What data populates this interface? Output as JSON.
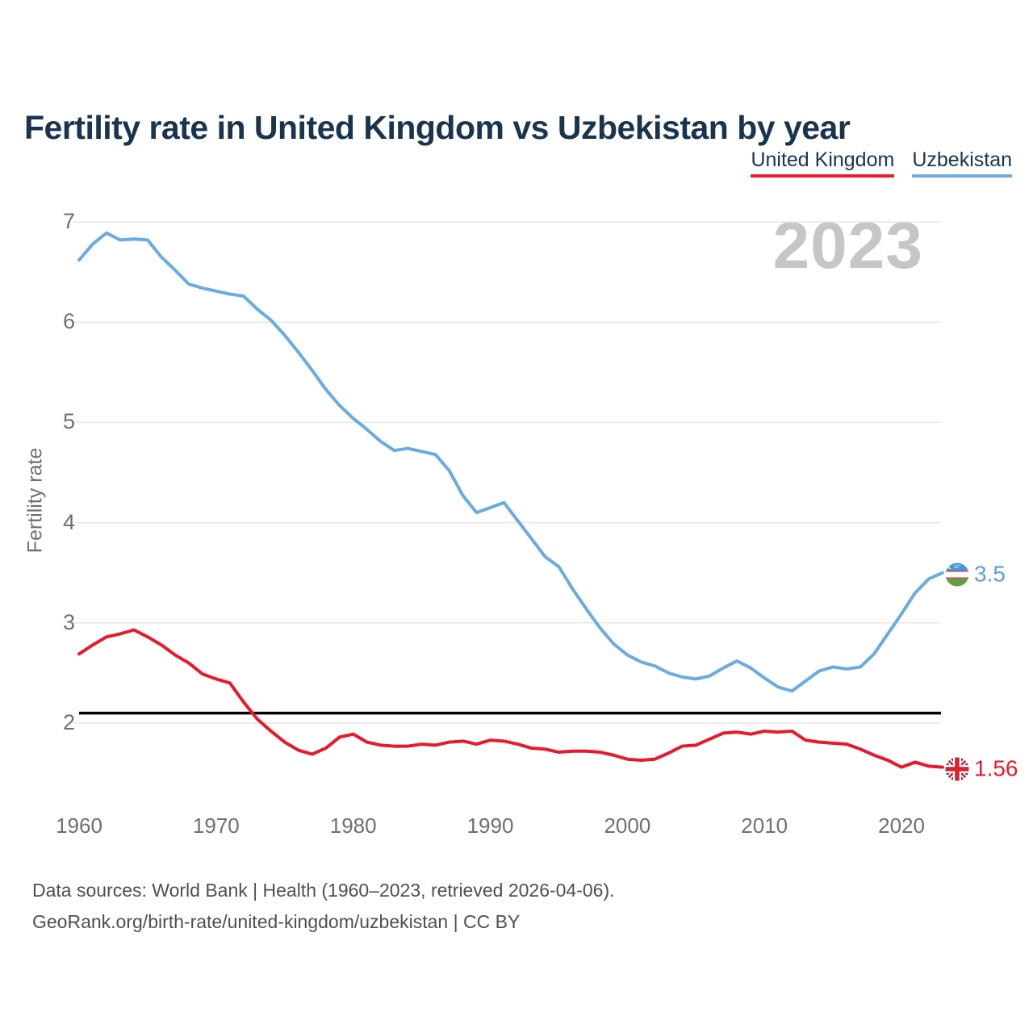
{
  "title": "Fertility rate in United Kingdom vs Uzbekistan by year",
  "legend": [
    {
      "label": "United Kingdom",
      "color": "#e8192c"
    },
    {
      "label": "Uzbekistan",
      "color": "#6aabe2"
    }
  ],
  "watermark": "2023",
  "y_axis": {
    "title": "Fertility rate",
    "ticks": [
      7,
      6,
      5,
      4,
      3,
      2
    ]
  },
  "x_axis": {
    "ticks": [
      1960,
      1970,
      1980,
      1990,
      2000,
      2010,
      2020
    ]
  },
  "end_labels": [
    {
      "series": "Uzbekistan",
      "value": "3.5",
      "color": "#5b9fd9"
    },
    {
      "series": "United Kingdom",
      "value": "1.56",
      "color": "#e8192c"
    }
  ],
  "footer": {
    "line1": "Data sources: World Bank | Health (1960–2023, retrieved 2026-04-06).",
    "line2": "GeoRank.org/birth-rate/united-kingdom/uzbekistan | CC BY"
  },
  "chart_data": {
    "type": "line",
    "title": "Fertility rate in United Kingdom vs Uzbekistan by year",
    "xlabel": "",
    "ylabel": "Fertility rate",
    "xlim": [
      1960,
      2023
    ],
    "ylim": [
      1.4,
      7.2
    ],
    "grid": "horizontal",
    "legend_position": "top-right",
    "reference_line": {
      "value": 2.1,
      "color": "#000000"
    },
    "x": [
      1960,
      1961,
      1962,
      1963,
      1964,
      1965,
      1966,
      1967,
      1968,
      1969,
      1970,
      1971,
      1972,
      1973,
      1974,
      1975,
      1976,
      1977,
      1978,
      1979,
      1980,
      1981,
      1982,
      1983,
      1984,
      1985,
      1986,
      1987,
      1988,
      1989,
      1990,
      1991,
      1992,
      1993,
      1994,
      1995,
      1996,
      1997,
      1998,
      1999,
      2000,
      2001,
      2002,
      2003,
      2004,
      2005,
      2006,
      2007,
      2008,
      2009,
      2010,
      2011,
      2012,
      2013,
      2014,
      2015,
      2016,
      2017,
      2018,
      2019,
      2020,
      2021,
      2022,
      2023
    ],
    "series": [
      {
        "name": "United Kingdom",
        "color": "#e8192c",
        "values": [
          2.69,
          2.78,
          2.86,
          2.89,
          2.93,
          2.86,
          2.78,
          2.68,
          2.6,
          2.49,
          2.44,
          2.4,
          2.21,
          2.04,
          1.92,
          1.81,
          1.73,
          1.69,
          1.75,
          1.86,
          1.89,
          1.81,
          1.78,
          1.77,
          1.77,
          1.79,
          1.78,
          1.81,
          1.82,
          1.79,
          1.83,
          1.82,
          1.79,
          1.75,
          1.74,
          1.71,
          1.72,
          1.72,
          1.71,
          1.68,
          1.64,
          1.63,
          1.64,
          1.7,
          1.77,
          1.78,
          1.84,
          1.9,
          1.91,
          1.89,
          1.92,
          1.91,
          1.92,
          1.83,
          1.81,
          1.8,
          1.79,
          1.74,
          1.68,
          1.63,
          1.56,
          1.61,
          1.57,
          1.56
        ]
      },
      {
        "name": "Uzbekistan",
        "color": "#6aabe2",
        "values": [
          6.62,
          6.78,
          6.89,
          6.82,
          6.83,
          6.82,
          6.65,
          6.52,
          6.38,
          6.34,
          6.31,
          6.28,
          6.26,
          6.13,
          6.02,
          5.87,
          5.7,
          5.52,
          5.33,
          5.17,
          5.04,
          4.93,
          4.81,
          4.72,
          4.74,
          4.71,
          4.68,
          4.52,
          4.27,
          4.1,
          4.15,
          4.2,
          4.02,
          3.84,
          3.66,
          3.56,
          3.34,
          3.14,
          2.95,
          2.79,
          2.68,
          2.61,
          2.57,
          2.5,
          2.46,
          2.44,
          2.47,
          2.55,
          2.62,
          2.55,
          2.45,
          2.36,
          2.32,
          2.42,
          2.52,
          2.56,
          2.54,
          2.56,
          2.69,
          2.89,
          3.09,
          3.3,
          3.44,
          3.5
        ]
      }
    ]
  }
}
